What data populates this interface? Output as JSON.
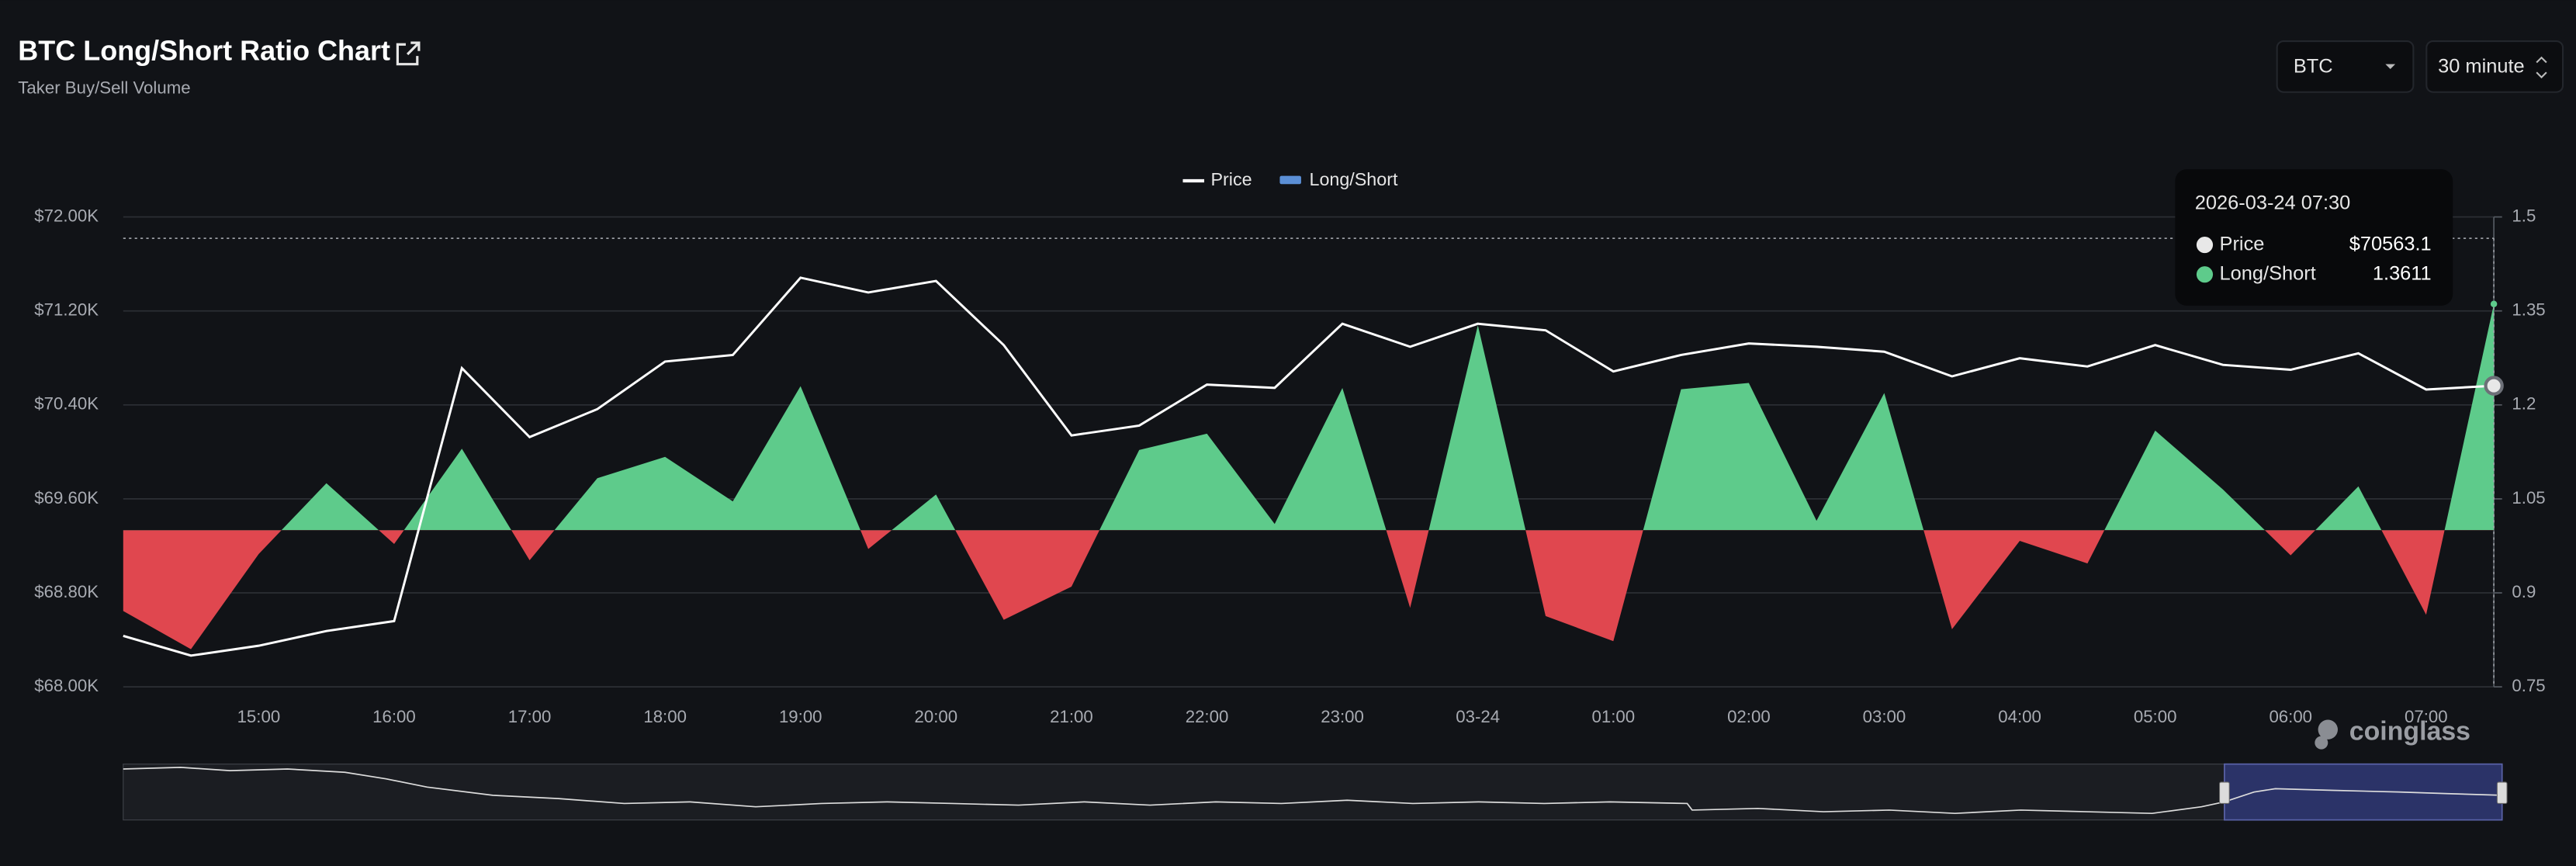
{
  "header": {
    "title": "BTC Long/Short Ratio Chart",
    "subtitle": "Taker Buy/Sell Volume"
  },
  "controls": {
    "symbol": "BTC",
    "interval": "30 minute"
  },
  "watermark": "coinglass",
  "chart_data": {
    "type": "line-area",
    "categories": [
      null,
      null,
      "15:00",
      null,
      "16:00",
      null,
      "17:00",
      null,
      "18:00",
      null,
      "19:00",
      null,
      "20:00",
      null,
      "21:00",
      null,
      "22:00",
      null,
      "23:00",
      null,
      "03-24",
      null,
      "01:00",
      null,
      "02:00",
      null,
      "03:00",
      null,
      "04:00",
      null,
      "05:00",
      null,
      "06:00",
      null,
      "07:00",
      null
    ],
    "series": [
      {
        "name": "Price",
        "color": "#ffffff",
        "axis": "y",
        "values": [
          68434,
          68266,
          68350,
          68475,
          68560,
          70713,
          70126,
          70364,
          70769,
          70825,
          71483,
          71357,
          71455,
          70909,
          70140,
          70224,
          70573,
          70545,
          71091,
          70895,
          71091,
          71035,
          70685,
          70825,
          70923,
          70895,
          70853,
          70643,
          70797,
          70727,
          70909,
          70741,
          70699,
          70839,
          70531,
          70563.1
        ]
      },
      {
        "name": "Long/Short",
        "color": "#5ecb8b",
        "negative_color": "#e0474f",
        "baseline": 1,
        "axis": "y2",
        "values": [
          0.871,
          0.81,
          0.962,
          1.075,
          0.978,
          1.13,
          0.952,
          1.083,
          1.117,
          1.046,
          1.23,
          0.97,
          1.057,
          0.857,
          0.91,
          1.128,
          1.154,
          1.01,
          1.227,
          0.876,
          1.327,
          0.863,
          0.823,
          1.225,
          1.235,
          1.015,
          1.219,
          0.842,
          0.983,
          0.947,
          1.159,
          1.065,
          0.96,
          1.07,
          0.865,
          1.3611
        ]
      }
    ],
    "ylim": [
      68000,
      72000
    ],
    "yticks": [
      {
        "value": 68000,
        "label": "$68.00K"
      },
      {
        "value": 68800,
        "label": "$68.80K"
      },
      {
        "value": 69600,
        "label": "$69.60K"
      },
      {
        "value": 70400,
        "label": "$70.40K"
      },
      {
        "value": 71200,
        "label": "$71.20K"
      },
      {
        "value": 72000,
        "label": "$72.00K"
      }
    ],
    "y2lim": [
      0.75,
      1.5
    ],
    "y2ticks": [
      0.75,
      0.9,
      1.05,
      1.2,
      1.35,
      1.5
    ],
    "grid": true,
    "legend": "top",
    "tooltip": {
      "title": "2026-03-24 07:30",
      "price_label": "$70563.1",
      "ratio_label": "1.3611"
    }
  }
}
